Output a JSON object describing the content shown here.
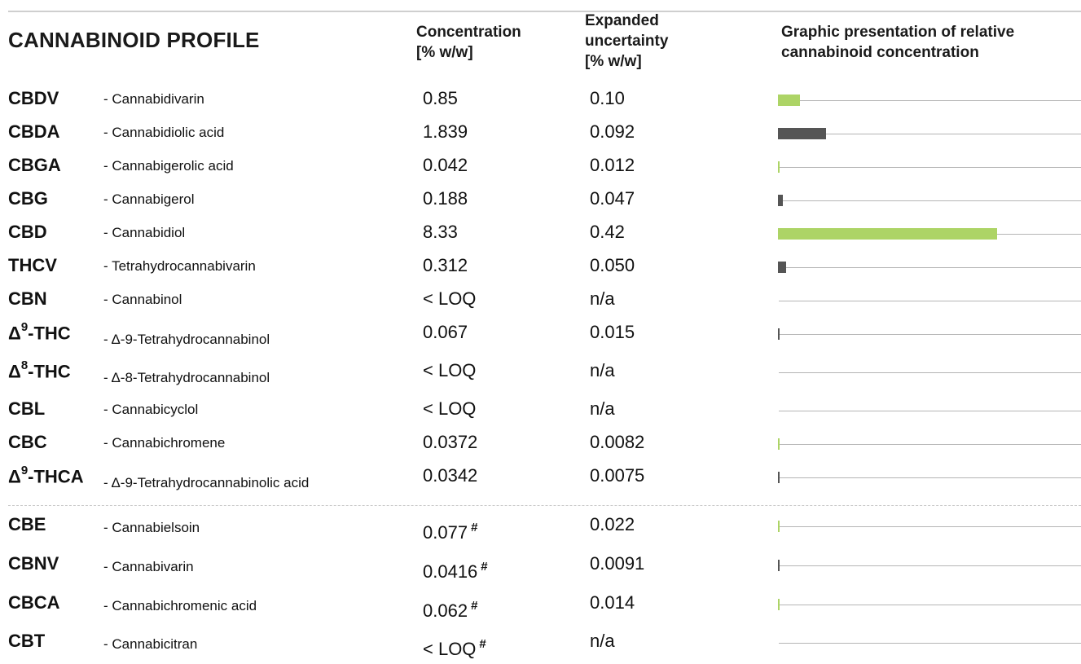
{
  "title": "CANNABINOID PROFILE",
  "headers": {
    "concentration": [
      "Concentration",
      "[% w/w]"
    ],
    "uncertainty": [
      "Expanded",
      "uncertainty",
      "[% w/w]"
    ],
    "graphic": [
      "Graphic presentation of relative",
      "cannabinoid concentration"
    ]
  },
  "colors": {
    "green": "#add466",
    "dark": "#555555",
    "track": "#b5b5b5"
  },
  "bar_scale_max": 11.5,
  "rows": [
    {
      "abbr": "CBDV",
      "name": "Cannabidivarin",
      "concentration": "0.85",
      "uncertainty": "0.10",
      "value": 0.85,
      "color": "green"
    },
    {
      "abbr": "CBDA",
      "name": "Cannabidiolic acid",
      "concentration": "1.839",
      "uncertainty": "0.092",
      "value": 1.839,
      "color": "dark"
    },
    {
      "abbr": "CBGA",
      "name": "Cannabigerolic acid",
      "concentration": "0.042",
      "uncertainty": "0.012",
      "value": 0.042,
      "color": "green"
    },
    {
      "abbr": "CBG",
      "name": "Cannabigerol",
      "concentration": "0.188",
      "uncertainty": "0.047",
      "value": 0.188,
      "color": "dark"
    },
    {
      "abbr": "CBD",
      "name": "Cannabidiol",
      "concentration": "8.33",
      "uncertainty": "0.42",
      "value": 8.33,
      "color": "green"
    },
    {
      "abbr": "THCV",
      "name": "Tetrahydrocannabivarin",
      "concentration": "0.312",
      "uncertainty": "0.050",
      "value": 0.312,
      "color": "dark"
    },
    {
      "abbr": "CBN",
      "name": "Cannabinol",
      "concentration": "< LOQ",
      "uncertainty": "n/a",
      "value": 0,
      "color": "green"
    },
    {
      "abbr": "Δ",
      "abbr_sup": "9",
      "abbr_suffix": "-THC",
      "name": "Δ-9-Tetrahydrocannabinol",
      "concentration": "0.067",
      "uncertainty": "0.015",
      "value": 0.067,
      "color": "dark"
    },
    {
      "abbr": "Δ",
      "abbr_sup": "8",
      "abbr_suffix": "-THC",
      "name": "Δ-8-Tetrahydrocannabinol",
      "concentration": "< LOQ",
      "uncertainty": "n/a",
      "value": 0,
      "color": "green"
    },
    {
      "abbr": "CBL",
      "name": "Cannabicyclol",
      "concentration": "< LOQ",
      "uncertainty": "n/a",
      "value": 0,
      "color": "dark"
    },
    {
      "abbr": "CBC",
      "name": "Cannabichromene",
      "concentration": "0.0372",
      "uncertainty": "0.0082",
      "value": 0.0372,
      "color": "green"
    },
    {
      "abbr": "Δ",
      "abbr_sup": "9",
      "abbr_suffix": "-THCA",
      "name": "Δ-9-Tetrahydrocannabinolic acid",
      "concentration": "0.0342",
      "uncertainty": "0.0075",
      "value": 0.0342,
      "color": "dark"
    },
    {
      "abbr": "CBE",
      "name": "Cannabielsoin",
      "concentration": "0.077",
      "mark": "#",
      "uncertainty": "0.022",
      "value": 0.077,
      "color": "green"
    },
    {
      "abbr": "CBNV",
      "name": "Cannabivarin",
      "concentration": "0.0416",
      "mark": "#",
      "uncertainty": "0.0091",
      "value": 0.0416,
      "color": "dark"
    },
    {
      "abbr": "CBCA",
      "name": "Cannabichromenic acid",
      "concentration": "0.062",
      "mark": "#",
      "uncertainty": "0.014",
      "value": 0.062,
      "color": "green"
    },
    {
      "abbr": "CBT",
      "name": "Cannabicitran",
      "concentration": "< LOQ",
      "mark": "#",
      "uncertainty": "n/a",
      "value": 0,
      "color": "dark"
    }
  ]
}
